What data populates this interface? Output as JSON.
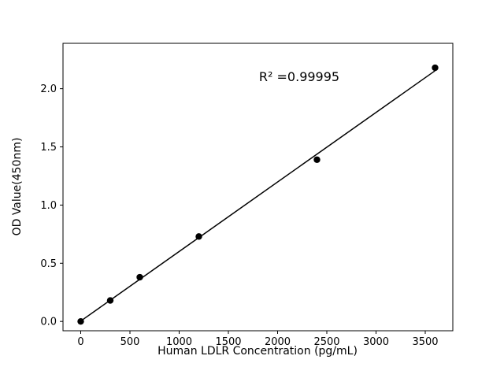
{
  "chart_data": {
    "type": "scatter",
    "title": "",
    "xlabel": "Human LDLR Concentration (pg/mL)",
    "ylabel": "OD Value(450nm)",
    "annotation": "R² =0.99995",
    "x": [
      0,
      300,
      600,
      1200,
      2400,
      3600
    ],
    "y": [
      0.0,
      0.18,
      0.38,
      0.73,
      1.39,
      2.18
    ],
    "fit_line": true,
    "marker_color": "#000000",
    "line_color": "#000000",
    "xlim": [
      -180,
      3780
    ],
    "ylim": [
      -0.08,
      2.39
    ],
    "xticks": [
      0,
      500,
      1000,
      1500,
      2000,
      2500,
      3000,
      3500
    ],
    "xtick_labels": [
      "0",
      "500",
      "1000",
      "1500",
      "2000",
      "2500",
      "3000",
      "3500"
    ],
    "yticks": [
      0.0,
      0.5,
      1.0,
      1.5,
      2.0
    ],
    "ytick_labels": [
      "0.0",
      "0.5",
      "1.0",
      "1.5",
      "2.0"
    ],
    "grid": false,
    "legend_position": null
  }
}
